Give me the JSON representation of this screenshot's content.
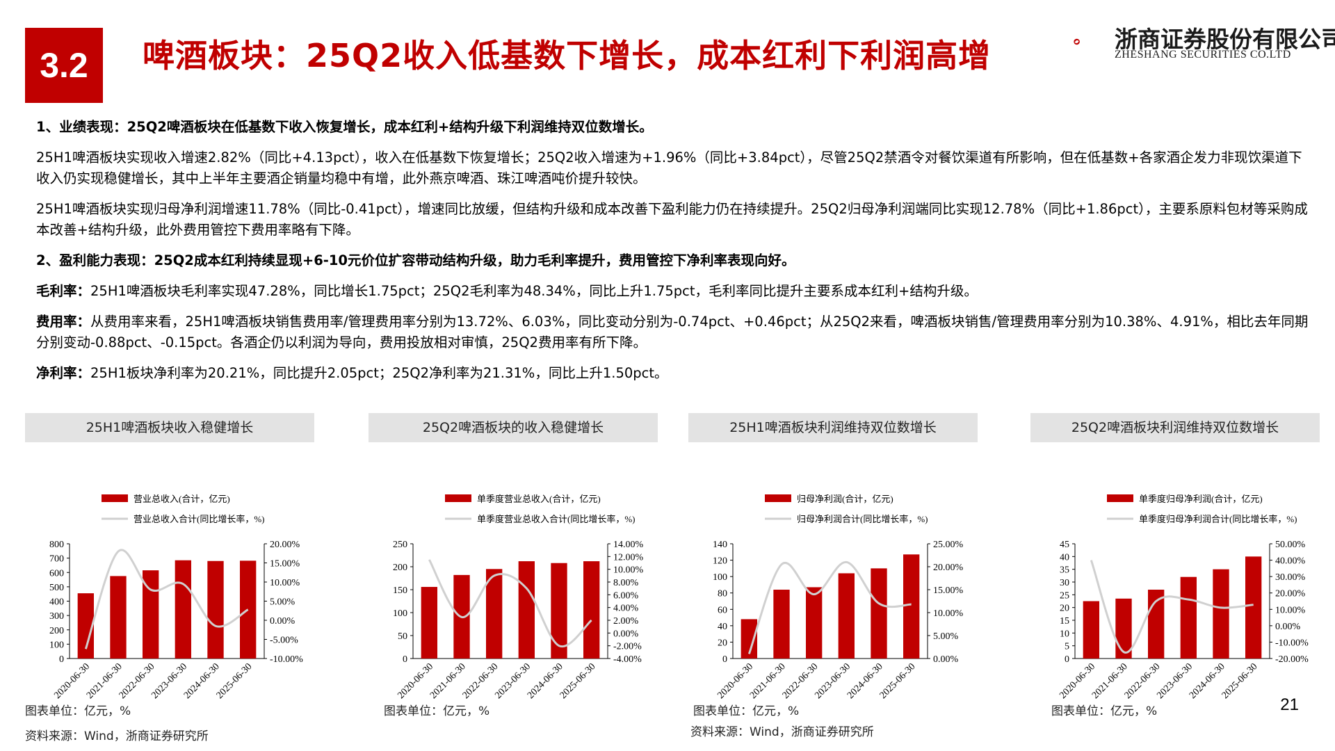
{
  "header": {
    "section_number": "3.2",
    "title": "啤酒板块：25Q2收入低基数下增长，成本红利下利润高增",
    "logo_cn": "浙商证券股份有限公司",
    "logo_en": "ZHESHANG SECURITIES CO.LTD"
  },
  "body": {
    "p1": "1、业绩表现：25Q2啤酒板块在低基数下收入恢复增长，成本红利+结构升级下利润维持双位数增长。",
    "p2": "25H1啤酒板块实现收入增速2.82%（同比+4.13pct），收入在低基数下恢复增长；25Q2收入增速为+1.96%（同比+3.84pct），尽管25Q2禁酒令对餐饮渠道有所影响，但在低基数+各家酒企发力非现饮渠道下收入仍实现稳健增长，其中上半年主要酒企销量均稳中有增，此外燕京啤酒、珠江啤酒吨价提升较快。",
    "p3": "25H1啤酒板块实现归母净利润增速11.78%（同比-0.41pct），增速同比放缓，但结构升级和成本改善下盈利能力仍在持续提升。25Q2归母净利润端同比实现12.78%（同比+1.86pct），主要系原料包材等采购成本改善+结构升级，此外费用管控下费用率略有下降。",
    "p4": "2、盈利能力表现：25Q2成本红利持续显现+6-10元价位扩容带动结构升级，助力毛利率提升，费用管控下净利率表现向好。",
    "p5_label": "毛利率：",
    "p5": "25H1啤酒板块毛利率实现47.28%，同比增长1.75pct；25Q2毛利率为48.34%，同比上升1.75pct，毛利率同比提升主要系成本红利+结构升级。",
    "p6_label": "费用率：",
    "p6": "从费用率来看，25H1啤酒板块销售费用率/管理费用率分别为13.72%、6.03%，同比变动分别为-0.74pct、+0.46pct；从25Q2来看，啤酒板块销售/管理费用率分别为10.38%、4.91%，相比去年同期分别变动-0.88pct、-0.15pct。各酒企仍以利润为导向，费用投放相对审慎，25Q2费用率有所下降。",
    "p7_label": "净利率：",
    "p7": "25H1板块净利率为20.21%，同比提升2.05pct；25Q2净利率为21.31%，同比上升1.50pct。"
  },
  "notes": {
    "unit": "图表单位：亿元，%",
    "source": "资料来源：Wind，浙商证券研究所"
  },
  "page_number": "21",
  "colors": {
    "accent": "#c00000",
    "bar": "#c00000",
    "line": "#d0d0d0"
  },
  "chart_data": [
    {
      "type": "bar",
      "title": "25H1啤酒板块收入稳健增长",
      "categories": [
        "2020-06-30",
        "2021-06-30",
        "2022-06-30",
        "2023-06-30",
        "2024-06-30",
        "2025-06-30"
      ],
      "series": [
        {
          "name": "营业总收入(合计，亿元)",
          "type": "bar",
          "axis": "left",
          "values": [
            455,
            575,
            615,
            685,
            680,
            682
          ]
        },
        {
          "name": "营业总收入合计(同比增长率，%)",
          "type": "line",
          "axis": "right",
          "values": [
            -7.5,
            18.0,
            8.0,
            9.5,
            -1.5,
            2.8
          ]
        }
      ],
      "ylim": [
        0,
        800
      ],
      "yticks": [
        0,
        100,
        200,
        300,
        400,
        500,
        600,
        700,
        800
      ],
      "y2lim": [
        -10,
        20
      ],
      "y2ticks": [
        "-10.00%",
        "-5.00%",
        "0.00%",
        "5.00%",
        "10.00%",
        "15.00%",
        "20.00%"
      ]
    },
    {
      "type": "bar",
      "title": "25Q2啤酒板块的收入稳健增长",
      "categories": [
        "2020-06-30",
        "2021-06-30",
        "2022-06-30",
        "2023-06-30",
        "2024-06-30",
        "2025-06-30"
      ],
      "series": [
        {
          "name": "单季度营业总收入(合计，亿元)",
          "type": "bar",
          "axis": "left",
          "values": [
            156,
            182,
            195,
            212,
            208,
            212
          ]
        },
        {
          "name": "单季度营业总收入合计(同比增长率，%)",
          "type": "line",
          "axis": "right",
          "values": [
            11.5,
            2.5,
            9.0,
            7.0,
            -2.0,
            2.0
          ]
        }
      ],
      "ylim": [
        0,
        250
      ],
      "yticks": [
        0,
        50,
        100,
        150,
        200,
        250
      ],
      "y2lim": [
        -4,
        14
      ],
      "y2ticks": [
        "-4.00%",
        "-2.00%",
        "0.00%",
        "2.00%",
        "4.00%",
        "6.00%",
        "8.00%",
        "10.00%",
        "12.00%",
        "14.00%"
      ]
    },
    {
      "type": "bar",
      "title": "25H1啤酒板块利润维持双位数增长",
      "categories": [
        "2020-06-30",
        "2021-06-30",
        "2022-06-30",
        "2023-06-30",
        "2024-06-30",
        "2025-06-30"
      ],
      "series": [
        {
          "name": "归母净利润(合计，亿元)",
          "type": "bar",
          "axis": "left",
          "values": [
            48,
            84,
            87,
            104,
            110,
            127
          ]
        },
        {
          "name": "归母净利润合计(同比增长率，%)",
          "type": "line",
          "axis": "right",
          "values": [
            1.0,
            20.5,
            14.0,
            21.0,
            12.0,
            11.8
          ]
        }
      ],
      "ylim": [
        0,
        140
      ],
      "yticks": [
        0,
        20,
        40,
        60,
        80,
        100,
        120,
        140
      ],
      "y2lim": [
        0,
        25
      ],
      "y2ticks": [
        "0.00%",
        "5.00%",
        "10.00%",
        "15.00%",
        "20.00%",
        "25.00%"
      ]
    },
    {
      "type": "bar",
      "title": "25Q2啤酒板块利润维持双位数增长",
      "categories": [
        "2020-06-30",
        "2021-06-30",
        "2022-06-30",
        "2023-06-30",
        "2024-06-30",
        "2025-06-30"
      ],
      "series": [
        {
          "name": "单季度归母净利润(合计，亿元)",
          "type": "bar",
          "axis": "left",
          "values": [
            22.5,
            23.5,
            27,
            32,
            35,
            40
          ]
        },
        {
          "name": "单季度归母净利润合计(同比增长率，%)",
          "type": "line",
          "axis": "right",
          "values": [
            40,
            -16,
            15,
            16,
            11,
            12.8
          ]
        }
      ],
      "ylim": [
        0,
        45
      ],
      "yticks": [
        0,
        5,
        10,
        15,
        20,
        25,
        30,
        35,
        40,
        45
      ],
      "y2lim": [
        -20,
        50
      ],
      "y2ticks": [
        "-20.00%",
        "-10.00%",
        "0.00%",
        "10.00%",
        "20.00%",
        "30.00%",
        "40.00%",
        "50.00%"
      ]
    }
  ]
}
